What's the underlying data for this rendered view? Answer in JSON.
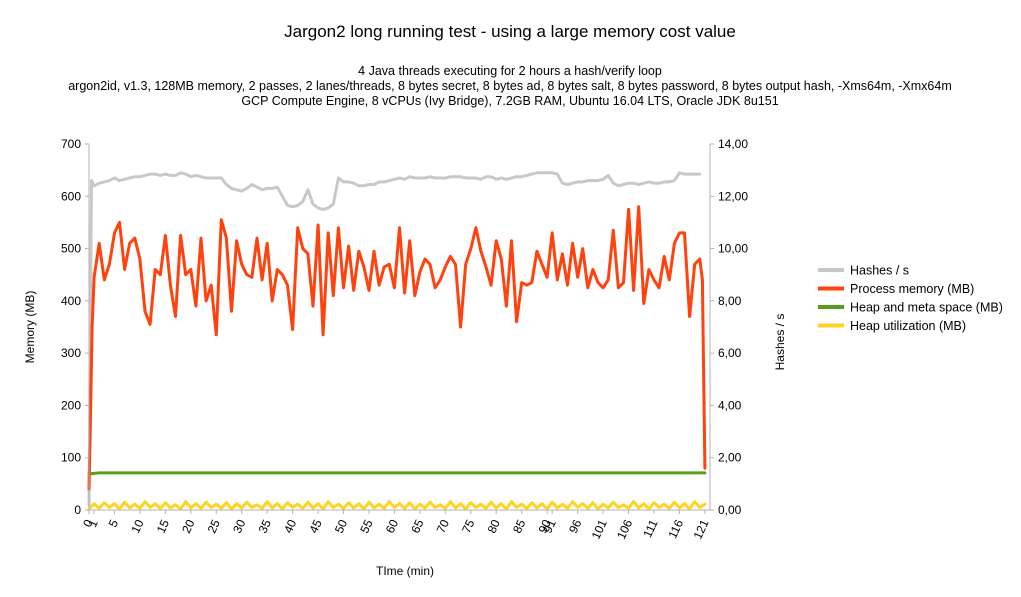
{
  "chart_data": {
    "type": "line",
    "title": "Jargon2 long running test - using a large memory cost value",
    "subtitle_lines": [
      "4 Java threads executing for 2 hours a hash/verify loop",
      "argon2id, v1.3, 128MB memory, 2 passes, 2 lanes/threads, 8 bytes secret, 8 bytes ad, 8 bytes salt, 8 bytes password, 8 bytes output hash, -Xms64m, -Xmx64m",
      "GCP Compute Engine, 8 vCPUs (Ivy Bridge), 7.2GB RAM, Ubuntu 16.04 LTS, Oracle JDK 8u151"
    ],
    "xlabel": "TIme (min)",
    "ylabel_left": "Memory (MB)",
    "ylabel_right": "Hashes / s",
    "xlim": [
      0,
      122
    ],
    "ylim_left": [
      0,
      700
    ],
    "ylim_right": [
      0,
      14
    ],
    "x_ticks": [
      0,
      1,
      5,
      10,
      15,
      20,
      25,
      30,
      35,
      40,
      45,
      50,
      55,
      60,
      65,
      70,
      75,
      80,
      85,
      90,
      91,
      96,
      101,
      106,
      111,
      116,
      121
    ],
    "x_tick_labels": [
      "0",
      "1",
      "5",
      "10",
      "15",
      "20",
      "25",
      "30",
      "35",
      "40",
      "45",
      "50",
      "55",
      "60",
      "65",
      "70",
      "75",
      "80",
      "85",
      "90",
      "91",
      "96",
      "101",
      "106",
      "111",
      "116",
      "121"
    ],
    "y_ticks_left": [
      0,
      100,
      200,
      300,
      400,
      500,
      600,
      700
    ],
    "y_tick_labels_left": [
      "0",
      "100",
      "200",
      "300",
      "400",
      "500",
      "600",
      "700"
    ],
    "y_ticks_right": [
      0,
      2,
      4,
      6,
      8,
      10,
      12,
      14
    ],
    "y_tick_labels_right": [
      "0,00",
      "2,00",
      "4,00",
      "6,00",
      "8,00",
      "10,00",
      "12,00",
      "14,00"
    ],
    "grid": false,
    "legend_position": "right",
    "series": [
      {
        "name": "Hashes / s",
        "axis": "right",
        "color": "#c8c8c8",
        "x": [
          0,
          0.5,
          1,
          2,
          3,
          4,
          5,
          6,
          7,
          8,
          9,
          10,
          11,
          12,
          13,
          14,
          15,
          16,
          17,
          18,
          19,
          20,
          21,
          22,
          23,
          24,
          25,
          26,
          27,
          28,
          29,
          30,
          31,
          32,
          33,
          34,
          35,
          36,
          37,
          38,
          39,
          40,
          41,
          42,
          43,
          44,
          45,
          46,
          47,
          48,
          49,
          50,
          51,
          52,
          53,
          54,
          55,
          56,
          57,
          58,
          59,
          60,
          61,
          62,
          63,
          64,
          65,
          66,
          67,
          68,
          69,
          70,
          71,
          72,
          73,
          74,
          75,
          76,
          77,
          78,
          79,
          80,
          81,
          82,
          83,
          84,
          85,
          86,
          87,
          88,
          89,
          90,
          91,
          92,
          93,
          94,
          95,
          96,
          97,
          98,
          99,
          100,
          101,
          102,
          103,
          104,
          105,
          106,
          107,
          108,
          109,
          110,
          111,
          112,
          113,
          114,
          115,
          116,
          117,
          118,
          119,
          120
        ],
        "values": [
          0.2,
          12.6,
          12.4,
          12.5,
          12.55,
          12.6,
          12.7,
          12.6,
          12.65,
          12.7,
          12.75,
          12.75,
          12.8,
          12.85,
          12.85,
          12.8,
          12.85,
          12.8,
          12.8,
          12.9,
          12.85,
          12.75,
          12.8,
          12.75,
          12.7,
          12.7,
          12.7,
          12.7,
          12.45,
          12.3,
          12.25,
          12.2,
          12.3,
          12.45,
          12.35,
          12.25,
          12.3,
          12.3,
          12.35,
          12.0,
          11.65,
          11.6,
          11.65,
          11.8,
          12.25,
          11.7,
          11.55,
          11.5,
          11.55,
          11.7,
          12.7,
          12.55,
          12.55,
          12.5,
          12.4,
          12.4,
          12.45,
          12.45,
          12.55,
          12.55,
          12.6,
          12.65,
          12.7,
          12.65,
          12.75,
          12.7,
          12.7,
          12.7,
          12.75,
          12.7,
          12.7,
          12.7,
          12.75,
          12.75,
          12.75,
          12.7,
          12.7,
          12.7,
          12.65,
          12.75,
          12.75,
          12.65,
          12.7,
          12.65,
          12.7,
          12.75,
          12.75,
          12.8,
          12.85,
          12.9,
          12.9,
          12.9,
          12.9,
          12.85,
          12.5,
          12.45,
          12.5,
          12.55,
          12.55,
          12.6,
          12.6,
          12.6,
          12.65,
          12.8,
          12.5,
          12.4,
          12.45,
          12.5,
          12.5,
          12.45,
          12.5,
          12.55,
          12.5,
          12.5,
          12.55,
          12.55,
          12.6,
          12.9,
          12.85,
          12.85,
          12.85,
          12.85
        ]
      },
      {
        "name": "Process memory (MB)",
        "axis": "left",
        "color": "#ff420e",
        "x": [
          0,
          0.3,
          0.6,
          1,
          2,
          3,
          4,
          5,
          6,
          7,
          8,
          9,
          10,
          11,
          12,
          13,
          14,
          15,
          16,
          17,
          18,
          19,
          20,
          21,
          22,
          23,
          24,
          25,
          26,
          27,
          28,
          29,
          30,
          31,
          32,
          33,
          34,
          35,
          36,
          37,
          38,
          39,
          40,
          41,
          42,
          43,
          44,
          45,
          46,
          47,
          48,
          49,
          50,
          51,
          52,
          53,
          54,
          55,
          56,
          57,
          58,
          59,
          60,
          61,
          62,
          63,
          64,
          65,
          66,
          67,
          68,
          69,
          70,
          71,
          72,
          73,
          74,
          75,
          76,
          77,
          78,
          79,
          80,
          81,
          82,
          83,
          84,
          85,
          86,
          87,
          88,
          89,
          90,
          91,
          92,
          93,
          94,
          95,
          96,
          97,
          98,
          99,
          100,
          101,
          102,
          103,
          104,
          105,
          106,
          107,
          108,
          109,
          110,
          111,
          112,
          113,
          114,
          115,
          116,
          117,
          118,
          119,
          120,
          120.5,
          121
        ],
        "values": [
          40,
          180,
          350,
          445,
          510,
          440,
          470,
          530,
          550,
          460,
          510,
          520,
          480,
          380,
          355,
          460,
          450,
          525,
          430,
          370,
          525,
          450,
          460,
          390,
          520,
          400,
          430,
          335,
          555,
          520,
          380,
          515,
          470,
          450,
          445,
          520,
          440,
          510,
          400,
          460,
          450,
          430,
          345,
          540,
          500,
          490,
          390,
          545,
          335,
          530,
          410,
          540,
          425,
          505,
          420,
          495,
          465,
          420,
          495,
          430,
          465,
          470,
          425,
          540,
          415,
          515,
          410,
          455,
          480,
          470,
          425,
          440,
          465,
          485,
          470,
          350,
          470,
          500,
          540,
          495,
          465,
          430,
          515,
          480,
          390,
          515,
          360,
          435,
          430,
          435,
          495,
          470,
          445,
          530,
          440,
          490,
          430,
          510,
          445,
          500,
          425,
          460,
          435,
          425,
          440,
          535,
          425,
          435,
          575,
          420,
          580,
          395,
          460,
          440,
          425,
          485,
          440,
          510,
          530,
          530,
          370,
          470,
          480,
          440,
          80
        ]
      },
      {
        "name": "Heap and meta space (MB)",
        "axis": "left",
        "color": "#579d1c",
        "x": [
          0,
          2,
          121
        ],
        "values": [
          69,
          71,
          71
        ]
      },
      {
        "name": "Heap utilization (MB)",
        "axis": "left",
        "color": "#ffd320",
        "x": [
          0,
          1,
          2,
          3,
          4,
          5,
          6,
          7,
          8,
          9,
          10,
          11,
          12,
          13,
          14,
          15,
          16,
          17,
          18,
          19,
          20,
          21,
          22,
          23,
          24,
          25,
          26,
          27,
          28,
          29,
          30,
          31,
          32,
          33,
          34,
          35,
          36,
          37,
          38,
          39,
          40,
          41,
          42,
          43,
          44,
          45,
          46,
          47,
          48,
          49,
          50,
          51,
          52,
          53,
          54,
          55,
          56,
          57,
          58,
          59,
          60,
          61,
          62,
          63,
          64,
          65,
          66,
          67,
          68,
          69,
          70,
          71,
          72,
          73,
          74,
          75,
          76,
          77,
          78,
          79,
          80,
          81,
          82,
          83,
          84,
          85,
          86,
          87,
          88,
          89,
          90,
          91,
          92,
          93,
          94,
          95,
          96,
          97,
          98,
          99,
          100,
          101,
          102,
          103,
          104,
          105,
          106,
          107,
          108,
          109,
          110,
          111,
          112,
          113,
          114,
          115,
          116,
          117,
          118,
          119,
          120,
          121
        ],
        "values": [
          2,
          12,
          3,
          14,
          5,
          12,
          2,
          15,
          4,
          11,
          3,
          16,
          5,
          12,
          3,
          14,
          4,
          10,
          2,
          16,
          4,
          12,
          3,
          15,
          5,
          11,
          3,
          14,
          2,
          12,
          4,
          15,
          5,
          10,
          3,
          16,
          4,
          12,
          2,
          14,
          5,
          11,
          3,
          15,
          4,
          12,
          2,
          16,
          5,
          11,
          3,
          14,
          4,
          12,
          2,
          15,
          4,
          11,
          3,
          16,
          5,
          12,
          3,
          14,
          2,
          11,
          4,
          15,
          5,
          10,
          3,
          16,
          4,
          12,
          2,
          14,
          5,
          11,
          3,
          15,
          4,
          12,
          2,
          16,
          5,
          11,
          3,
          14,
          4,
          12,
          2,
          15,
          4,
          11,
          3,
          16,
          5,
          12,
          3,
          14,
          2,
          11,
          4,
          15,
          5,
          10,
          3,
          16,
          4,
          12,
          2,
          14,
          5,
          11,
          3,
          15,
          4,
          12,
          2,
          16,
          5,
          11
        ]
      }
    ]
  }
}
